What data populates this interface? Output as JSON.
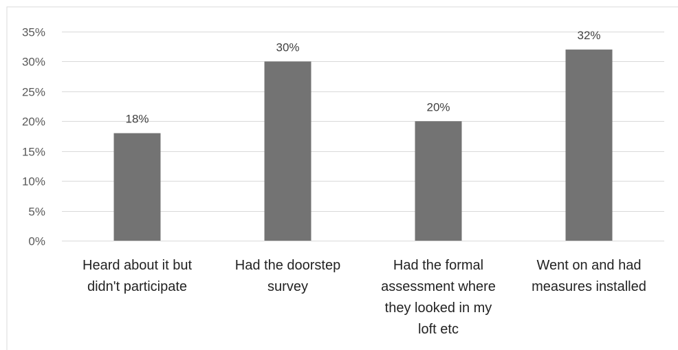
{
  "chart_data": {
    "type": "bar",
    "title": "",
    "xlabel": "",
    "ylabel": "",
    "categories": [
      "Heard about it but didn't participate",
      "Had the doorstep survey",
      "Had the formal assessment where they looked in my loft etc",
      "Went on and had measures installed"
    ],
    "values": [
      18,
      30,
      20,
      32
    ],
    "data_labels": [
      "18%",
      "30%",
      "20%",
      "32%"
    ],
    "ylim": [
      0,
      35
    ],
    "yticks": [
      0,
      5,
      10,
      15,
      20,
      25,
      30,
      35
    ],
    "ytick_labels": [
      "0%",
      "5%",
      "10%",
      "15%",
      "20%",
      "25%",
      "30%",
      "35%"
    ],
    "grid": true,
    "legend": "none",
    "bar_color": "#737373"
  }
}
